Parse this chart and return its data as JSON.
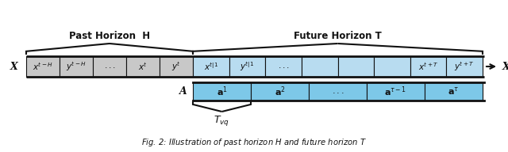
{
  "fig_width": 6.4,
  "fig_height": 1.92,
  "dpi": 100,
  "bg_color": "#ffffff",
  "gray_cell_color": "#c8c8c8",
  "light_blue_cell_color": "#b8dcf0",
  "action_blue_color": "#7dc8e8",
  "border_color": "#111111",
  "text_color": "#111111",
  "past_label": "Past Horizon  H",
  "future_label": "Future Horizon T",
  "tvq_label": "$T_{vq}$",
  "past_cells": [
    "$x^{t-H}$",
    "$y^{t-H}$",
    "$...$",
    "$x^t$",
    "$y^t$"
  ],
  "future_labels_row1": [
    "$x^{t|1}$",
    "$y^{t|1}$",
    "$...$",
    "",
    "",
    "",
    "$x^{t+T}$",
    "$y^{t+T}$"
  ],
  "action_labels": [
    "$\\mathbf{a}^1$",
    "$\\mathbf{a}^2$",
    "$...$",
    "$\\mathbf{a}^{\\tau-1}$",
    "$\\mathbf{a}^{\\tau}$"
  ]
}
